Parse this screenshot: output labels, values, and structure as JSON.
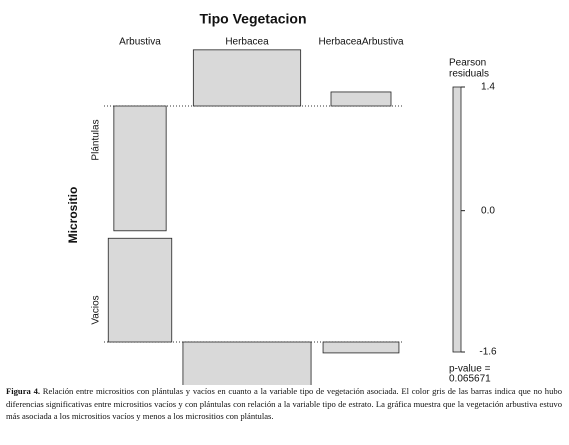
{
  "chart_data": {
    "type": "assoc",
    "title": "Tipo Vegetacion",
    "y_label": "Micrositio",
    "columns": [
      "Arbustiva",
      "Herbacea",
      "HerbaceaArbustiva"
    ],
    "rows": [
      {
        "name": "Plántulas",
        "residuals": [
          -1.6,
          0.72,
          0.18
        ],
        "expected": [
          19,
          80,
          25
        ]
      },
      {
        "name": "Vacios",
        "residuals": [
          1.33,
          -0.56,
          -0.14
        ],
        "expected": [
          28,
          114,
          40
        ]
      }
    ],
    "bar_color": "#d9d9d9",
    "legend_title": [
      "Pearson",
      "residuals"
    ],
    "legend_lim": [
      -1.6,
      1.4
    ],
    "legend_ticks": [
      1.4,
      {
        "value": 0,
        "label": "0.0"
      },
      -1.6
    ],
    "p_value_label": "p-value =",
    "p_value": 0.065671
  },
  "caption": {
    "label": "Figura 4.",
    "text": "Relación entre micrositios con plántulas y vacíos en cuanto a la variable tipo de vegetación asociada. El color gris de las barras indica que no hubo diferencias significativas entre micrositios vacíos y con plántulas con relación a la variable tipo de estrato. La gráfica muestra que la vegetación arbustiva estuvo más asociada a los micrositios vacíos y menos a los micrositios con plántulas."
  }
}
